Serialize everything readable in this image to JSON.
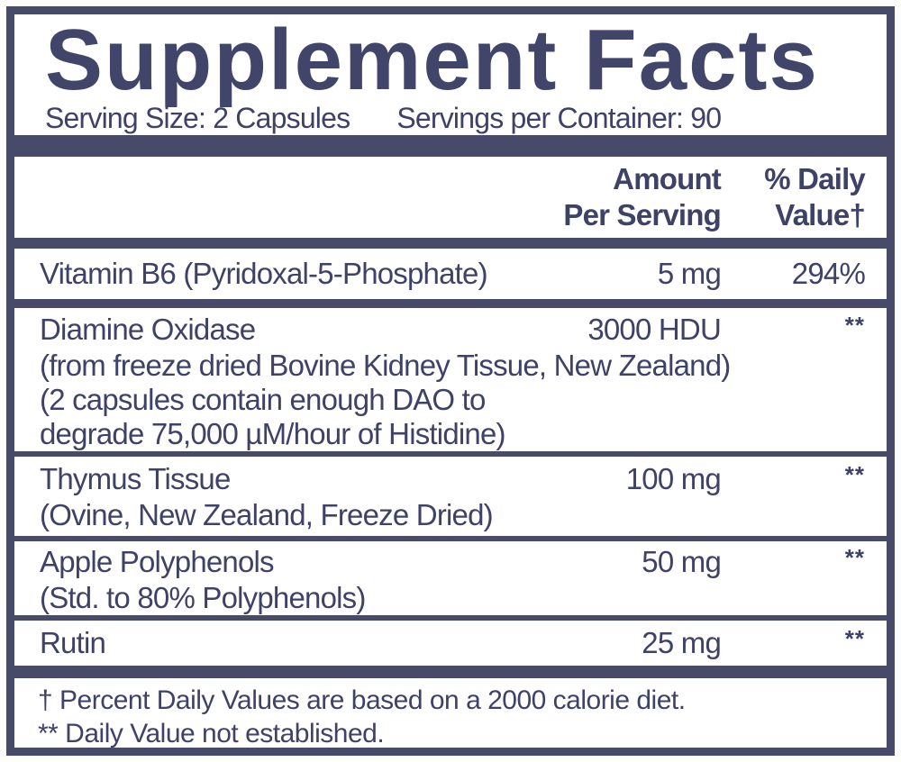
{
  "panel": {
    "title": "Supplement Facts",
    "serving_size": "Serving Size: 2 Capsules",
    "servings_per_container": "Servings per Container: 90"
  },
  "table": {
    "headers": {
      "amount_line1": "Amount",
      "amount_line2": "Per Serving",
      "dv_line1": "% Daily",
      "dv_line2": "Value†"
    },
    "rows": [
      {
        "name": "Vitamin B6 (Pyridoxal-5-Phosphate)",
        "amount": "5 mg",
        "daily_value": "294%",
        "details": []
      },
      {
        "name": "Diamine Oxidase",
        "amount": "3000 HDU",
        "daily_value": "**",
        "details": [
          "(from freeze dried Bovine Kidney Tissue, New Zealand)",
          "(2 capsules contain enough DAO to",
          "degrade 75,000 µM/hour of Histidine)"
        ]
      },
      {
        "name": "Thymus Tissue",
        "amount": "100 mg",
        "daily_value": "**",
        "details": [
          "(Ovine, New Zealand, Freeze Dried)"
        ]
      },
      {
        "name": "Apple Polyphenols",
        "amount": "50 mg",
        "daily_value": "**",
        "details": [
          "(Std. to 80% Polyphenols)"
        ]
      },
      {
        "name": "Rutin",
        "amount": "25 mg",
        "daily_value": "**",
        "details": []
      }
    ],
    "footnotes": [
      "† Percent Daily Values are based on a 2000 calorie diet.",
      "** Daily Value not established."
    ]
  },
  "colors": {
    "navy_bars": "#474A68",
    "text_navy": "#3E4267",
    "background": "#FFFFFF"
  }
}
